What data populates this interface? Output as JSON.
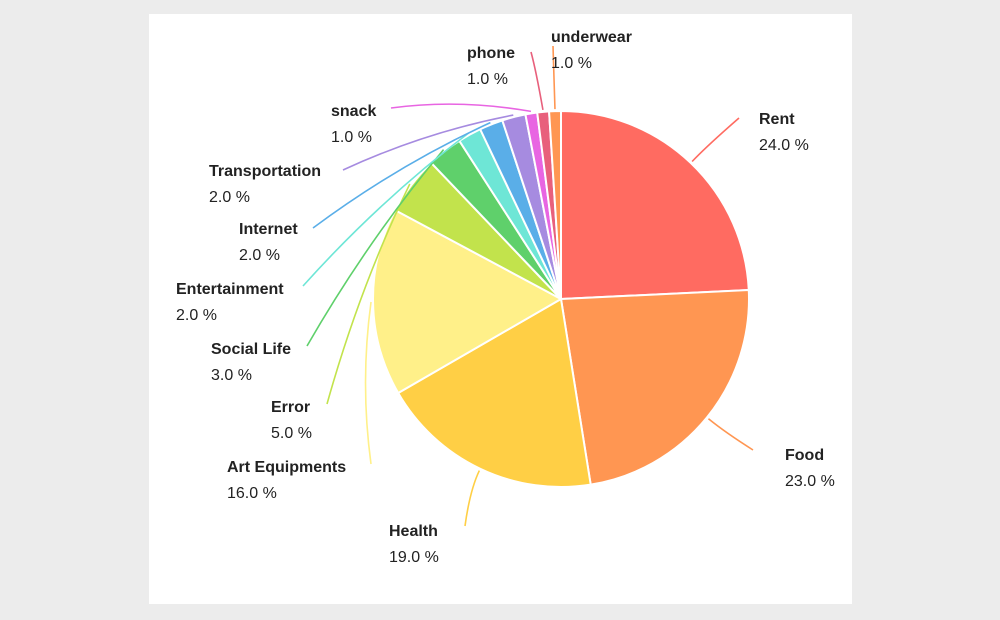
{
  "chart_data": {
    "type": "pie",
    "title": "",
    "slices": [
      {
        "label": "Rent",
        "value": 24.0,
        "display": "24.0 %",
        "color": "#ff6b61"
      },
      {
        "label": "Food",
        "value": 23.0,
        "display": "23.0 %",
        "color": "#ff9652"
      },
      {
        "label": "Health",
        "value": 19.0,
        "display": "19.0 %",
        "color": "#ffcf45"
      },
      {
        "label": "Art Equipments",
        "value": 16.0,
        "display": "16.0 %",
        "color": "#fff089"
      },
      {
        "label": "Error",
        "value": 5.0,
        "display": "5.0 %",
        "color": "#c2e34c"
      },
      {
        "label": "Social Life",
        "value": 3.0,
        "display": "3.0 %",
        "color": "#5fd06b"
      },
      {
        "label": "Entertainment",
        "value": 2.0,
        "display": "2.0 %",
        "color": "#6ee6d6"
      },
      {
        "label": "Internet",
        "value": 2.0,
        "display": "2.0 %",
        "color": "#5aaee8"
      },
      {
        "label": "Transportation",
        "value": 2.0,
        "display": "2.0 %",
        "color": "#a68be0"
      },
      {
        "label": "snack",
        "value": 1.0,
        "display": "1.0 %",
        "color": "#e865e2"
      },
      {
        "label": "phone",
        "value": 1.0,
        "display": "1.0 %",
        "color": "#e8607c"
      },
      {
        "label": "underwear",
        "value": 1.0,
        "display": "1.0 %",
        "color": "#ff9652"
      }
    ]
  }
}
